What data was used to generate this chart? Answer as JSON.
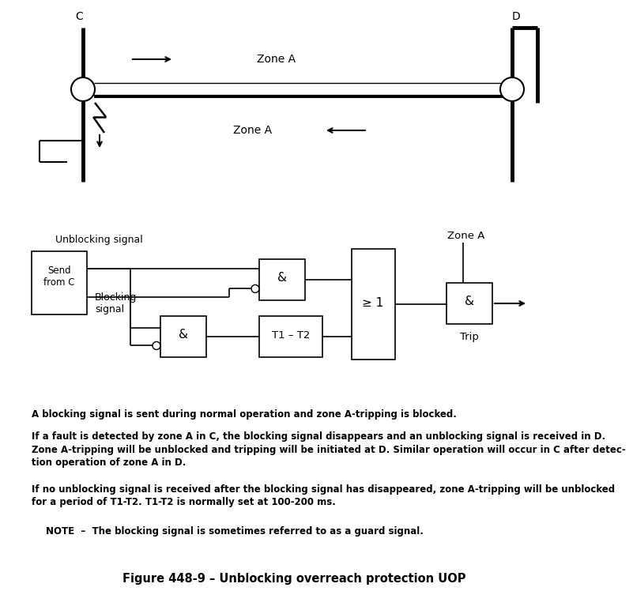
{
  "title": "Figure 448-9 – Unblocking overreach protection UOP",
  "bg_color": "#ffffff",
  "text_color": "#000000",
  "label_C": "C",
  "label_D": "D",
  "zone_A_top": "Zone A",
  "zone_A_bottom": "Zone A",
  "send_from_C": "Send\nfrom C",
  "unblocking_signal": "Unblocking signal",
  "blocking_signal": "Blocking\nsignal",
  "zone_A_logic": "Zone A",
  "trip_label": "Trip",
  "and1_label": "&",
  "and2_label": "&",
  "or_label": "≥ 1",
  "and3_label": "&",
  "timer_label": "T1 – T2",
  "para1": "A blocking signal is sent during normal operation and zone A-tripping is blocked.",
  "para2": "If a fault is detected by zone A in C, the blocking signal disappears and an unblocking signal is received in D.\nZone A-tripping will be unblocked and tripping will be initiated at D. Similar operation will occur in C after detec-\ntion operation of zone A in D.",
  "para3": "If no unblocking signal is received after the blocking signal has disappeared, zone A-tripping will be unblocked\nfor a period of T1-T2. T1-T2 is normally set at 100-200 ms.",
  "note": "NOTE  –  The blocking signal is sometimes referred to as a guard signal."
}
